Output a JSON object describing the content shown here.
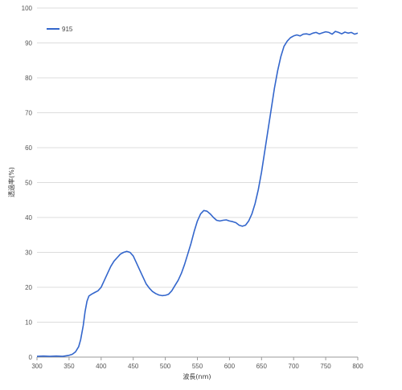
{
  "chart_data": {
    "type": "line",
    "xlabel": "波長(nm)",
    "ylabel": "透過率(%)",
    "xlim": [
      300,
      800
    ],
    "ylim": [
      0,
      100
    ],
    "xticks": [
      300,
      350,
      400,
      450,
      500,
      550,
      600,
      650,
      700,
      750,
      800
    ],
    "yticks": [
      0,
      10,
      20,
      30,
      40,
      50,
      60,
      70,
      80,
      90,
      100
    ],
    "grid": "horizontal",
    "legend_position": "top-left",
    "series": [
      {
        "name": "915",
        "color": "#3366cc",
        "x": [
          300,
          310,
          320,
          330,
          340,
          350,
          355,
          360,
          365,
          368,
          372,
          375,
          378,
          381,
          385,
          390,
          395,
          400,
          405,
          410,
          415,
          420,
          425,
          430,
          435,
          440,
          445,
          450,
          455,
          460,
          465,
          470,
          475,
          480,
          485,
          490,
          495,
          500,
          505,
          510,
          515,
          520,
          525,
          530,
          535,
          540,
          545,
          550,
          555,
          560,
          565,
          570,
          575,
          580,
          585,
          590,
          595,
          600,
          605,
          610,
          615,
          620,
          625,
          630,
          635,
          640,
          645,
          650,
          655,
          660,
          665,
          670,
          675,
          680,
          685,
          690,
          695,
          700,
          705,
          710,
          715,
          720,
          725,
          730,
          735,
          740,
          745,
          750,
          755,
          760,
          765,
          770,
          775,
          780,
          785,
          790,
          795,
          800
        ],
        "y": [
          0.2,
          0.3,
          0.2,
          0.3,
          0.2,
          0.5,
          0.8,
          1.5,
          3.0,
          5.0,
          9.0,
          13.0,
          16.0,
          17.5,
          18.0,
          18.5,
          19.0,
          20.0,
          22.0,
          24.0,
          26.0,
          27.5,
          28.5,
          29.5,
          30.0,
          30.3,
          30.0,
          29.0,
          27.0,
          25.0,
          23.0,
          21.0,
          19.8,
          18.8,
          18.2,
          17.8,
          17.6,
          17.7,
          18.0,
          19.0,
          20.5,
          22.0,
          24.0,
          26.5,
          29.5,
          32.5,
          36.0,
          39.0,
          41.0,
          42.0,
          41.8,
          41.0,
          40.0,
          39.2,
          39.0,
          39.2,
          39.3,
          39.0,
          38.8,
          38.5,
          37.8,
          37.5,
          37.8,
          39.0,
          41.0,
          44.0,
          48.0,
          53.0,
          59.0,
          65.0,
          71.0,
          77.0,
          82.0,
          86.0,
          89.0,
          90.5,
          91.5,
          92.0,
          92.3,
          92.0,
          92.5,
          92.6,
          92.4,
          92.8,
          93.0,
          92.6,
          92.9,
          93.2,
          93.0,
          92.5,
          93.3,
          93.0,
          92.6,
          93.1,
          92.8,
          93.0,
          92.5,
          92.8
        ]
      }
    ]
  }
}
